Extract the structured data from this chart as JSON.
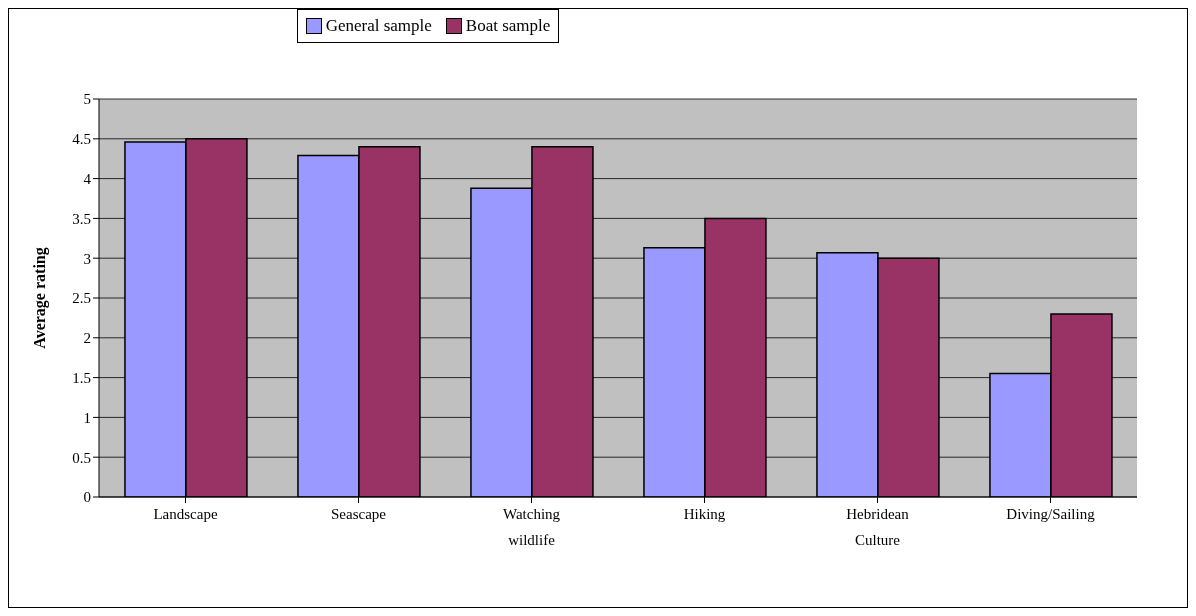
{
  "chart_data": {
    "type": "bar",
    "ylabel": "Average rating",
    "categories": [
      "Landscape",
      "Seascape",
      "Watching wildlife",
      "Hiking",
      "Hebridean Culture",
      "Diving/Sailing"
    ],
    "series": [
      {
        "name": "General sample",
        "color": "#9999ff",
        "values": [
          4.46,
          4.29,
          3.88,
          3.13,
          3.07,
          1.55
        ]
      },
      {
        "name": "Boat sample",
        "color": "#993366",
        "values": [
          4.5,
          4.4,
          4.4,
          3.5,
          3.0,
          2.3
        ]
      }
    ],
    "ylim": [
      0,
      5
    ],
    "yticks": [
      0,
      0.5,
      1,
      1.5,
      2,
      2.5,
      3,
      3.5,
      4,
      4.5,
      5
    ],
    "grid": "y",
    "legend": "top"
  }
}
